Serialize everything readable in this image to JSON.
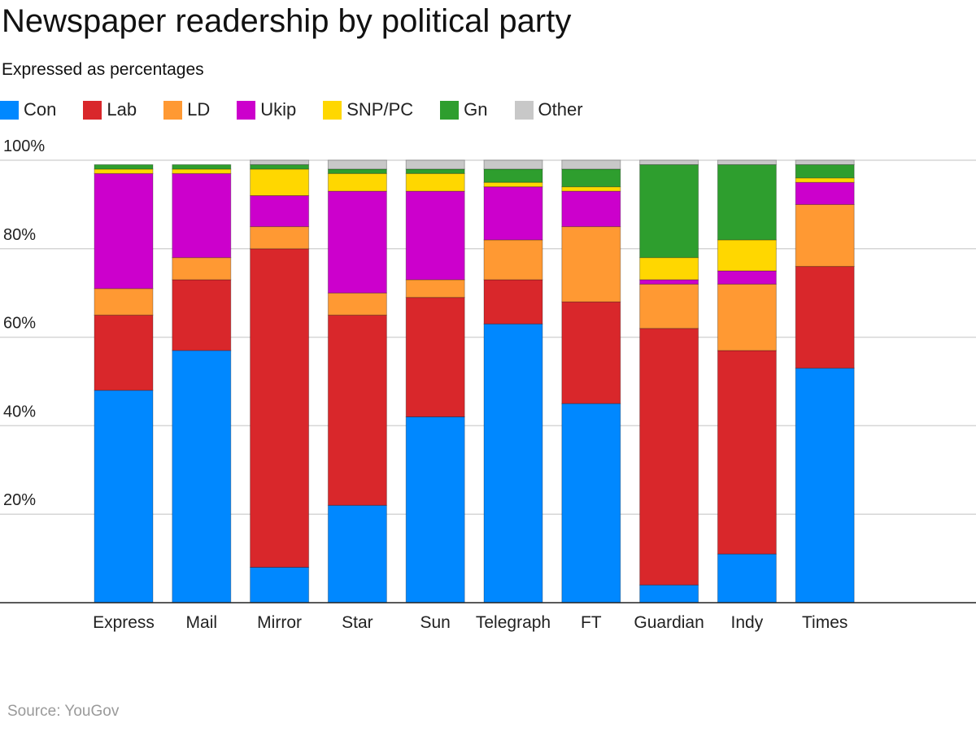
{
  "title": "Newspaper readership by political party",
  "subtitle": "Expressed as percentages",
  "source": "Source: YouGov",
  "legend": [
    {
      "label": "Con",
      "color": "#0088FF"
    },
    {
      "label": "Lab",
      "color": "#D9272B"
    },
    {
      "label": "LD",
      "color": "#FF9933"
    },
    {
      "label": "Ukip",
      "color": "#CC00CC"
    },
    {
      "label": "SNP/PC",
      "color": "#FFD700"
    },
    {
      "label": "Gn",
      "color": "#2E9E2E"
    },
    {
      "label": "Other",
      "color": "#C8C8C8"
    }
  ],
  "chart_data": {
    "type": "bar",
    "stacked": true,
    "title": "Newspaper readership by political party",
    "subtitle": "Expressed as percentages",
    "categories": [
      "Express",
      "Mail",
      "Mirror",
      "Star",
      "Sun",
      "Telegraph",
      "FT",
      "Guardian",
      "Indy",
      "Times"
    ],
    "yticks": [
      "20%",
      "40%",
      "60%",
      "80%",
      "100%"
    ],
    "ylim": [
      0,
      100
    ],
    "grid": true,
    "legend_position": "top",
    "series": [
      {
        "name": "Con",
        "color": "#0088FF",
        "values": [
          48,
          57,
          8,
          22,
          42,
          63,
          45,
          4,
          11,
          53
        ]
      },
      {
        "name": "Lab",
        "color": "#D9272B",
        "values": [
          17,
          16,
          72,
          43,
          27,
          10,
          23,
          58,
          46,
          23
        ]
      },
      {
        "name": "LD",
        "color": "#FF9933",
        "values": [
          6,
          5,
          5,
          5,
          4,
          9,
          17,
          10,
          15,
          14
        ]
      },
      {
        "name": "Ukip",
        "color": "#CC00CC",
        "values": [
          26,
          19,
          7,
          23,
          20,
          12,
          8,
          1,
          3,
          5
        ]
      },
      {
        "name": "SNP/PC",
        "color": "#FFD700",
        "values": [
          1,
          1,
          6,
          4,
          4,
          1,
          1,
          5,
          7,
          1
        ]
      },
      {
        "name": "Gn",
        "color": "#2E9E2E",
        "values": [
          1,
          1,
          1,
          1,
          1,
          3,
          4,
          21,
          17,
          3
        ]
      },
      {
        "name": "Other",
        "color": "#C8C8C8",
        "values": [
          0,
          0,
          1,
          2,
          2,
          2,
          2,
          1,
          1,
          1
        ]
      }
    ]
  }
}
